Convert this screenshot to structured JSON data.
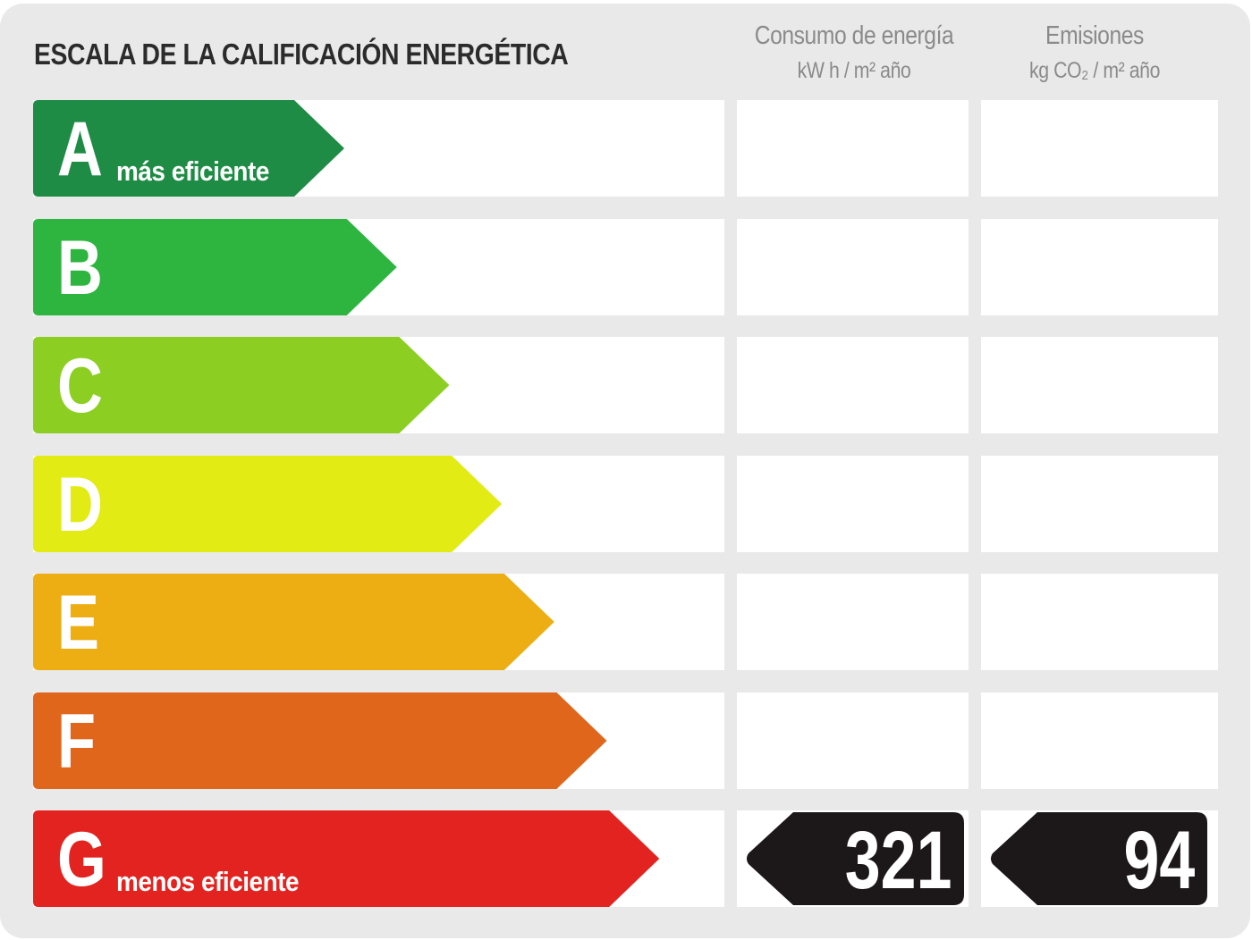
{
  "title": "ESCALA DE LA CALIFICACIÓN ENERGÉTICA",
  "columns": [
    {
      "title": "Consumo de energía",
      "unit": "kW h / m² año"
    },
    {
      "title": "Emisiones",
      "unit": "kg CO₂ / m² año"
    }
  ],
  "ratings": [
    {
      "letter": "A",
      "label": "más eficiente",
      "color": "#1e8c45"
    },
    {
      "letter": "B",
      "label": "",
      "color": "#2db540"
    },
    {
      "letter": "C",
      "label": "",
      "color": "#8ccf22"
    },
    {
      "letter": "D",
      "label": "",
      "color": "#e2eb14"
    },
    {
      "letter": "E",
      "label": "",
      "color": "#edae14"
    },
    {
      "letter": "F",
      "label": "",
      "color": "#e0661c"
    },
    {
      "letter": "G",
      "label": "menos eficiente",
      "color": "#e2231f"
    }
  ],
  "current_rating": "G",
  "energy_consumption": "321",
  "emissions": "94",
  "badge_color": "#1c1718"
}
